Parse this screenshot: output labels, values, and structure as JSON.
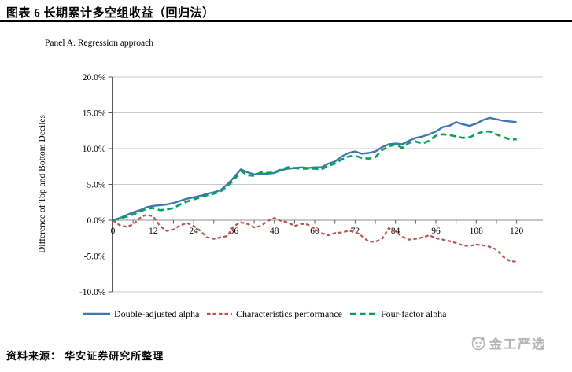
{
  "header": {
    "title": "图表 6 长期累计多空组收益（回归法）"
  },
  "panel_label": "Panel A. Regression approach",
  "chart_data": {
    "type": "line",
    "title": "Panel A. Regression approach",
    "xlabel": "",
    "ylabel": "Difference of Top and Bottom Deciles",
    "xlim": [
      0,
      120
    ],
    "ylim": [
      -10,
      20
    ],
    "grid": true,
    "legend_position": "bottom",
    "x_unit": "months",
    "xticks": [
      0,
      12,
      24,
      36,
      48,
      60,
      72,
      84,
      96,
      108,
      120
    ],
    "xtick_minor_step": 6,
    "ytick_values": [
      20,
      15,
      10,
      5,
      0,
      -5,
      -10
    ],
    "ytick_labels": [
      "20.0%",
      "15.0%",
      "10.0%",
      "5.0%",
      "0.0%",
      "-5.0%",
      "-10.0%"
    ],
    "x": [
      0,
      2,
      4,
      6,
      8,
      10,
      12,
      14,
      16,
      18,
      20,
      22,
      24,
      26,
      28,
      30,
      32,
      34,
      36,
      38,
      40,
      42,
      44,
      46,
      48,
      50,
      52,
      54,
      56,
      58,
      60,
      62,
      64,
      66,
      68,
      70,
      72,
      74,
      76,
      78,
      80,
      82,
      84,
      86,
      88,
      90,
      92,
      94,
      96,
      98,
      100,
      102,
      104,
      106,
      108,
      110,
      112,
      114,
      116,
      118,
      120
    ],
    "series": [
      {
        "name": "Double-adjusted alpha",
        "color": "#4176b4",
        "style": "solid",
        "values": [
          0.0,
          0.3,
          0.7,
          1.1,
          1.4,
          1.8,
          2.0,
          2.1,
          2.2,
          2.4,
          2.7,
          3.0,
          3.2,
          3.4,
          3.7,
          3.9,
          4.2,
          5.0,
          6.0,
          7.1,
          6.7,
          6.4,
          6.5,
          6.5,
          6.6,
          7.0,
          7.2,
          7.3,
          7.4,
          7.3,
          7.4,
          7.4,
          7.9,
          8.2,
          8.9,
          9.4,
          9.6,
          9.3,
          9.4,
          9.6,
          10.2,
          10.6,
          10.7,
          10.6,
          11.1,
          11.5,
          11.7,
          12.0,
          12.4,
          13.0,
          13.2,
          13.7,
          13.4,
          13.2,
          13.5,
          14.0,
          14.3,
          14.1,
          13.9,
          13.8,
          13.7
        ]
      },
      {
        "name": "Characteristics performance",
        "color": "#c0504d",
        "style": "dashed-short",
        "values": [
          0.0,
          -0.7,
          -0.9,
          -0.6,
          0.3,
          0.8,
          0.5,
          -0.8,
          -1.5,
          -1.3,
          -0.7,
          -0.4,
          -0.8,
          -1.5,
          -2.4,
          -2.6,
          -2.4,
          -2.2,
          -0.8,
          -0.3,
          -0.5,
          -1.0,
          -0.8,
          -0.1,
          0.3,
          -0.1,
          -0.3,
          -0.8,
          -0.5,
          -0.6,
          -1.2,
          -1.8,
          -2.1,
          -1.8,
          -1.7,
          -1.5,
          -1.6,
          -2.2,
          -3.0,
          -3.0,
          -2.6,
          -1.1,
          -1.6,
          -2.3,
          -2.7,
          -2.6,
          -2.4,
          -2.1,
          -2.5,
          -2.7,
          -2.9,
          -3.2,
          -3.5,
          -3.6,
          -3.4,
          -3.5,
          -3.7,
          -4.1,
          -5.1,
          -5.7,
          -5.8
        ]
      },
      {
        "name": "Four-factor alpha",
        "color": "#00a551",
        "style": "dashed-long",
        "values": [
          0.0,
          0.2,
          0.5,
          0.8,
          1.2,
          1.6,
          1.7,
          1.4,
          1.5,
          1.7,
          2.2,
          2.6,
          2.9,
          3.2,
          3.5,
          3.7,
          4.0,
          4.8,
          5.6,
          6.9,
          6.3,
          6.2,
          6.7,
          6.6,
          6.7,
          7.1,
          7.4,
          7.3,
          7.2,
          7.2,
          7.2,
          7.1,
          7.6,
          7.9,
          8.5,
          8.9,
          9.0,
          8.7,
          8.6,
          8.8,
          9.8,
          10.3,
          10.6,
          10.1,
          10.8,
          11.0,
          10.7,
          11.1,
          11.8,
          12.0,
          11.9,
          11.7,
          11.5,
          11.6,
          12.0,
          12.4,
          12.4,
          12.0,
          11.6,
          11.3,
          11.3
        ]
      }
    ]
  },
  "footer": {
    "source_text": "资料来源： 华安证券研究所整理",
    "watermark_text": "金工严选"
  }
}
